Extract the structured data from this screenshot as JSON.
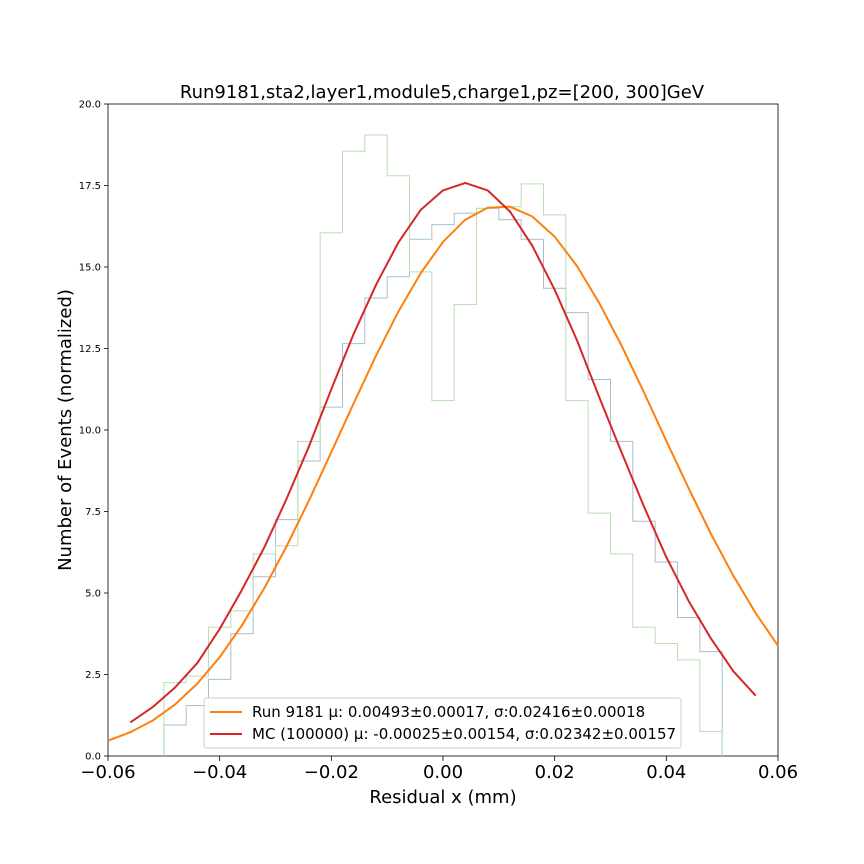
{
  "chart_data": {
    "type": "line",
    "title": "Run9181,sta2,layer1,module5,charge1,pz=[200, 300]GeV",
    "xlabel": "Residual x (mm)",
    "ylabel": "Number of Events (normalized)",
    "xlim": [
      -0.06,
      0.06
    ],
    "ylim": [
      0,
      20
    ],
    "xticks": [
      "−0.06",
      "−0.04",
      "−0.02",
      "0.00",
      "0.02",
      "0.04",
      "0.06"
    ],
    "yticks": [
      "0.0",
      "2.5",
      "5.0",
      "7.5",
      "10.0",
      "12.5",
      "15.0",
      "17.5",
      "20.0"
    ],
    "legend_position": "lower-center",
    "histograms": [
      {
        "color": "#a6bfd1",
        "edges": [
          -0.05,
          -0.046,
          -0.042,
          -0.038,
          -0.034,
          -0.03,
          -0.026,
          -0.022,
          -0.018,
          -0.014,
          -0.01,
          -0.006,
          -0.002,
          0.002,
          0.006,
          0.01,
          0.014,
          0.018,
          0.022,
          0.026,
          0.03,
          0.034,
          0.038,
          0.042,
          0.046,
          0.05
        ],
        "values": [
          0.95,
          1.55,
          2.35,
          3.75,
          5.5,
          7.25,
          9.05,
          10.7,
          12.65,
          14.05,
          14.7,
          15.85,
          16.3,
          16.65,
          16.8,
          16.45,
          15.85,
          14.35,
          13.6,
          11.55,
          9.65,
          7.2,
          5.95,
          4.25,
          3.2
        ]
      },
      {
        "color": "#b8e0b0",
        "edges": [
          -0.05,
          -0.046,
          -0.042,
          -0.038,
          -0.034,
          -0.03,
          -0.026,
          -0.022,
          -0.018,
          -0.014,
          -0.01,
          -0.006,
          -0.002,
          0.002,
          0.006,
          0.01,
          0.014,
          0.018,
          0.022,
          0.026,
          0.03,
          0.034,
          0.038,
          0.042,
          0.046,
          0.05
        ],
        "values": [
          2.25,
          2.45,
          3.95,
          4.45,
          6.2,
          6.45,
          9.65,
          16.05,
          18.55,
          19.05,
          17.8,
          14.85,
          10.9,
          13.85,
          16.8,
          16.85,
          17.55,
          16.6,
          10.9,
          7.45,
          6.2,
          3.95,
          3.45,
          2.95,
          0.75
        ]
      }
    ],
    "series": [
      {
        "name": "Run 9181 μ: 0.00493±0.00017, σ:0.02416±0.00018",
        "color": "#ff7f0e",
        "x": [
          -0.06,
          -0.056,
          -0.052,
          -0.048,
          -0.044,
          -0.04,
          -0.036,
          -0.032,
          -0.028,
          -0.024,
          -0.02,
          -0.016,
          -0.012,
          -0.008,
          -0.004,
          0.0,
          0.004,
          0.008,
          0.012,
          0.016,
          0.02,
          0.024,
          0.028,
          0.032,
          0.036,
          0.04,
          0.044,
          0.048,
          0.052,
          0.056,
          0.06
        ],
        "y": [
          0.47,
          0.73,
          1.09,
          1.58,
          2.22,
          3.03,
          4.01,
          5.15,
          6.44,
          7.84,
          9.32,
          10.82,
          12.28,
          13.63,
          14.81,
          15.77,
          16.45,
          16.82,
          16.85,
          16.55,
          15.93,
          15.03,
          13.89,
          12.58,
          11.15,
          9.67,
          8.21,
          6.81,
          5.53,
          4.38,
          3.38
        ]
      },
      {
        "name": "MC (100000) μ: -0.00025±0.00154, σ:0.02342±0.00157",
        "color": "#d62728",
        "x": [
          -0.056,
          -0.052,
          -0.048,
          -0.044,
          -0.04,
          -0.036,
          -0.032,
          -0.028,
          -0.024,
          -0.02,
          -0.016,
          -0.012,
          -0.008,
          -0.004,
          0.0,
          0.004,
          0.008,
          0.012,
          0.016,
          0.02,
          0.024,
          0.028,
          0.032,
          0.036,
          0.04,
          0.044,
          0.048,
          0.052,
          0.056
        ],
        "y": [
          1.03,
          1.5,
          2.1,
          2.85,
          3.9,
          5.1,
          6.4,
          7.9,
          9.5,
          11.25,
          12.95,
          14.45,
          15.75,
          16.75,
          17.35,
          17.58,
          17.35,
          16.7,
          15.65,
          14.3,
          12.75,
          11.0,
          9.3,
          7.65,
          6.1,
          4.75,
          3.6,
          2.6,
          1.85
        ]
      }
    ]
  }
}
